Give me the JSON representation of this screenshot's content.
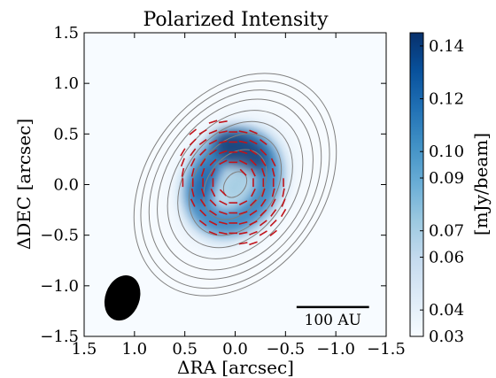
{
  "chart_data": {
    "type": "heatmap",
    "title": "Polarized Intensity",
    "xlabel": "ΔRA [arcsec]",
    "ylabel": "ΔDEC [arcsec]",
    "xlim": [
      1.5,
      -1.5
    ],
    "ylim": [
      -1.5,
      1.5
    ],
    "x_ticks": [
      1.5,
      1.0,
      0.5,
      0.0,
      -0.5,
      -1.0,
      -1.5
    ],
    "x_tick_labels": [
      "1.5",
      "1.0",
      "0.5",
      "0.0",
      "−0.5",
      "−1.0",
      "−1.5"
    ],
    "y_ticks": [
      1.5,
      1.0,
      0.5,
      0.0,
      -0.5,
      -1.0,
      -1.5
    ],
    "y_tick_labels": [
      "1.5",
      "1.0",
      "0.5",
      "0.0",
      "−0.5",
      "−1.0",
      "−1.5"
    ],
    "colorbar": {
      "label": "[mJy/beam]",
      "min": 0.03,
      "max": 0.145,
      "ticks": [
        0.14,
        0.12,
        0.1,
        0.09,
        0.07,
        0.06,
        0.04,
        0.03
      ],
      "tick_labels": [
        "0.14",
        "0.12",
        "0.10",
        "0.09",
        "0.07",
        "0.06",
        "0.04",
        "0.03"
      ],
      "colormap": "Blues"
    },
    "emission": {
      "center": [
        0.02,
        0.02
      ],
      "position_angle_deg": 30,
      "ring_major_arcsec": 0.42,
      "ring_minor_arcsec": 0.32,
      "peak_mJy_per_beam": 0.145,
      "peak_side": "north-east"
    },
    "contours": {
      "color": "#808080",
      "center": [
        0.0,
        0.0
      ],
      "position_angle_deg": 36,
      "major_arcsec": [
        0.14,
        0.38,
        0.55,
        0.68,
        0.8,
        0.92,
        1.02,
        1.12,
        1.2
      ],
      "minor_arcsec": [
        0.1,
        0.27,
        0.4,
        0.5,
        0.59,
        0.68,
        0.75,
        0.82,
        0.88
      ]
    },
    "polarization_vectors": {
      "color": "#c0141b",
      "pattern": "azimuthal",
      "grid_step_arcsec": 0.1,
      "vector_length_arcsec": 0.085
    },
    "beam": {
      "center": [
        1.12,
        -1.12
      ],
      "major_arcsec": 0.23,
      "minor_arcsec": 0.17,
      "position_angle_deg": 20,
      "color": "#000000"
    },
    "scale_bar": {
      "label": "100 AU",
      "length_arcsec": 0.72,
      "center": [
        -0.97,
        -1.21
      ]
    }
  }
}
